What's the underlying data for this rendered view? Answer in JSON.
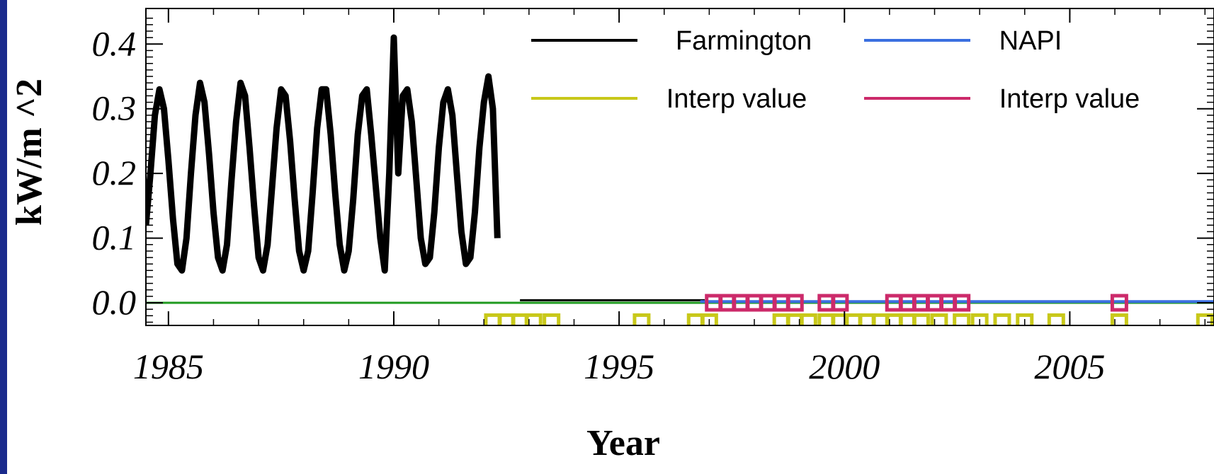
{
  "chart_data": {
    "type": "line",
    "title": "",
    "xlabel": "Year",
    "ylabel": "kW/m ^2",
    "xlim": [
      1984.5,
      2008.2
    ],
    "ylim": [
      -0.035,
      0.455
    ],
    "x_ticks": [
      1985,
      1990,
      1995,
      2000,
      2005
    ],
    "x_tick_labels": [
      "1985",
      "1990",
      "1995",
      "2000",
      "2005"
    ],
    "y_ticks": [
      0.0,
      0.1,
      0.2,
      0.3,
      0.4
    ],
    "y_tick_labels": [
      "0.0",
      "0.1",
      "0.2",
      "0.3",
      "0.4"
    ],
    "grid": false,
    "legend_position": "top-right",
    "reference_line": {
      "y": 0.0,
      "color": "#1f9a1f"
    },
    "series": [
      {
        "name": "Farmington",
        "color": "#000000",
        "kind": "line",
        "x": [
          1984.5,
          1984.6,
          1984.7,
          1984.8,
          1984.9,
          1985.0,
          1985.1,
          1985.2,
          1985.3,
          1985.4,
          1985.5,
          1985.6,
          1985.7,
          1985.8,
          1985.9,
          1986.0,
          1986.1,
          1986.2,
          1986.3,
          1986.4,
          1986.5,
          1986.6,
          1986.7,
          1986.8,
          1986.9,
          1987.0,
          1987.1,
          1987.2,
          1987.3,
          1987.4,
          1987.5,
          1987.6,
          1987.7,
          1987.8,
          1987.9,
          1988.0,
          1988.1,
          1988.2,
          1988.3,
          1988.4,
          1988.5,
          1988.6,
          1988.7,
          1988.8,
          1988.9,
          1989.0,
          1989.1,
          1989.2,
          1989.3,
          1989.4,
          1989.5,
          1989.6,
          1989.7,
          1989.8,
          1989.9,
          1990.0,
          1990.1,
          1990.2,
          1990.3,
          1990.4,
          1990.5,
          1990.6,
          1990.7,
          1990.8,
          1990.9,
          1991.0,
          1991.1,
          1991.2,
          1991.3,
          1991.4,
          1991.5,
          1991.6,
          1991.7,
          1991.8,
          1991.9,
          1992.0,
          1992.1,
          1992.2,
          1992.3
        ],
        "y": [
          0.12,
          0.2,
          0.29,
          0.33,
          0.3,
          0.22,
          0.13,
          0.06,
          0.05,
          0.1,
          0.2,
          0.29,
          0.34,
          0.31,
          0.23,
          0.14,
          0.07,
          0.05,
          0.09,
          0.19,
          0.28,
          0.34,
          0.32,
          0.24,
          0.15,
          0.07,
          0.05,
          0.09,
          0.18,
          0.27,
          0.33,
          0.32,
          0.25,
          0.16,
          0.08,
          0.05,
          0.08,
          0.17,
          0.27,
          0.33,
          0.33,
          0.26,
          0.17,
          0.09,
          0.05,
          0.08,
          0.16,
          0.26,
          0.32,
          0.33,
          0.26,
          0.18,
          0.1,
          0.05,
          0.2,
          0.41,
          0.2,
          0.32,
          0.33,
          0.28,
          0.19,
          0.1,
          0.06,
          0.07,
          0.14,
          0.24,
          0.31,
          0.33,
          0.29,
          0.2,
          0.11,
          0.06,
          0.07,
          0.14,
          0.24,
          0.31,
          0.35,
          0.3,
          0.1
        ]
      },
      {
        "name": "NAPI",
        "color": "#3a6fe0",
        "kind": "line",
        "x": [
          1996.8,
          2008.2
        ],
        "y": [
          0.002,
          0.002
        ]
      },
      {
        "name": "Interp value",
        "color": "#c8c81a",
        "kind": "markers",
        "x": [
          1992.2,
          1992.5,
          1992.8,
          1993.1,
          1993.5,
          1995.5,
          1996.7,
          1997.0,
          1998.6,
          1998.9,
          1999.2,
          1999.6,
          1999.9,
          2000.2,
          2000.5,
          2000.8,
          2001.1,
          2001.4,
          2001.7,
          2002.1,
          2002.6,
          2003.0,
          2003.5,
          2004.0,
          2004.7,
          2006.1,
          2008.0
        ],
        "y": [
          -0.03,
          -0.03,
          -0.03,
          -0.03,
          -0.03,
          -0.03,
          -0.03,
          -0.03,
          -0.03,
          -0.03,
          -0.03,
          -0.03,
          -0.03,
          -0.03,
          -0.03,
          -0.03,
          -0.03,
          -0.03,
          -0.03,
          -0.03,
          -0.03,
          -0.03,
          -0.03,
          -0.03,
          -0.03,
          -0.03,
          -0.03
        ]
      },
      {
        "name": "Interp value",
        "color": "#cc2a6a",
        "kind": "markers",
        "x": [
          1997.1,
          1997.4,
          1997.7,
          1998.0,
          1998.3,
          1998.6,
          1998.9,
          1999.6,
          1999.9,
          2001.1,
          2001.4,
          2001.7,
          2002.0,
          2002.3,
          2002.6,
          2006.1
        ],
        "y": [
          0.0,
          0.0,
          0.0,
          0.0,
          0.0,
          0.0,
          0.0,
          0.0,
          0.0,
          0.0,
          0.0,
          0.0,
          0.0,
          0.0,
          0.0,
          0.0
        ]
      }
    ]
  },
  "colors": {
    "frame_border": "#1a2a8c",
    "axis": "#000000",
    "background": "#ffffff"
  }
}
